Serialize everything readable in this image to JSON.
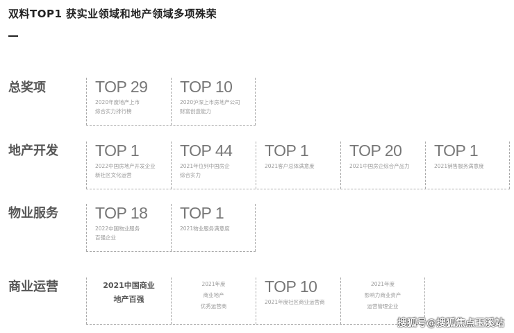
{
  "title": "双料TOP1  获实业领域和地产领域多项殊荣",
  "categories": [
    {
      "label": "总奖项",
      "awards": [
        {
          "rank": "TOP 29",
          "desc": [
            "2020年度地产上市",
            "综合实力排行榜"
          ]
        },
        {
          "rank": "TOP 10",
          "desc": [
            "2020沪深上市房地产公司",
            "财富创造能力"
          ]
        }
      ]
    },
    {
      "label": "地产开发",
      "awards": [
        {
          "rank": "TOP 1",
          "desc": [
            "2022中国房地产开发企业",
            "新社区文化运营"
          ]
        },
        {
          "rank": "TOP 44",
          "desc": [
            "2021年位列中国房企",
            "综合实力"
          ]
        },
        {
          "rank": "TOP 1",
          "desc": [
            "2021客户总体满意度"
          ]
        },
        {
          "rank": "TOP 20",
          "desc": [
            "2021中国房企综合产品力"
          ]
        },
        {
          "rank": "TOP 1",
          "desc": [
            "2021销售服务满意度"
          ]
        }
      ]
    },
    {
      "label": "物业服务",
      "awards": [
        {
          "rank": "TOP 18",
          "desc": [
            "2022中国物业服务",
            "百强企业"
          ]
        },
        {
          "rank": "TOP 1",
          "desc": [
            "2021物业服务满意度"
          ]
        }
      ]
    },
    {
      "label": "商业运营",
      "awards": [
        {
          "bold": [
            "2021中国商业",
            "地产百强"
          ]
        },
        {
          "centerdesc": [
            "2021年度",
            "商业地产",
            "优秀运营商"
          ]
        },
        {
          "rank": "TOP 10",
          "desc": [
            "2021年度社区商业运营商"
          ]
        },
        {
          "centerdesc": [
            "2021年度",
            "影响力商业资产",
            "运营管理企业"
          ]
        }
      ]
    }
  ],
  "watermark": "搜狐号@搜狐焦点玉溪站"
}
